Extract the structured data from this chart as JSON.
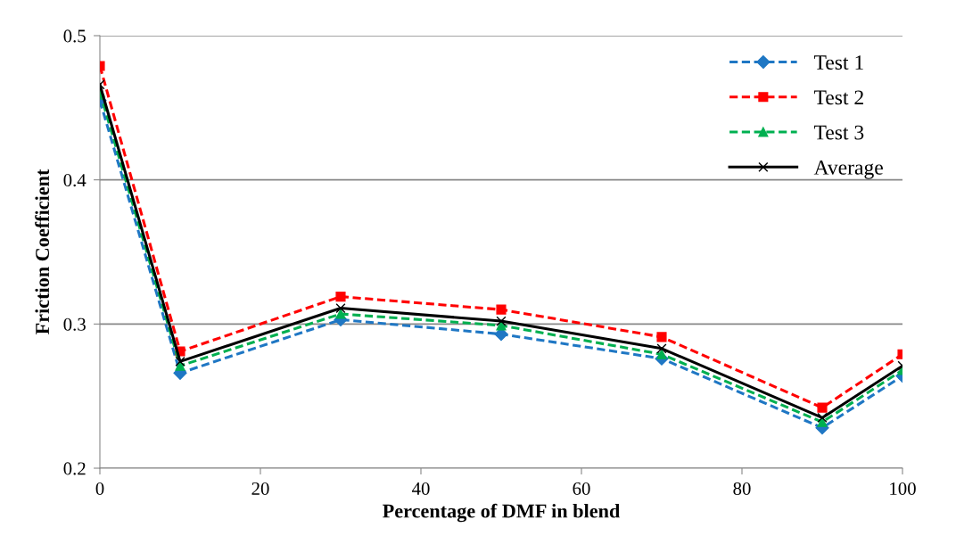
{
  "chart_data": {
    "type": "line",
    "xlabel": "Percentage of DMF in blend",
    "ylabel": "Friction Coefficient",
    "x": [
      0,
      10,
      30,
      50,
      70,
      90,
      100
    ],
    "series": [
      {
        "name": "Test 1",
        "color": "#1f77c4",
        "marker": "diamond",
        "line_style": "dashed",
        "values": [
          0.455,
          0.266,
          0.303,
          0.293,
          0.276,
          0.228,
          0.264
        ]
      },
      {
        "name": "Test 2",
        "color": "#ff0000",
        "marker": "square",
        "line_style": "dashed",
        "values": [
          0.479,
          0.281,
          0.319,
          0.31,
          0.291,
          0.242,
          0.279
        ]
      },
      {
        "name": "Test 3",
        "color": "#00b050",
        "marker": "triangle",
        "line_style": "dashed",
        "values": [
          0.461,
          0.271,
          0.307,
          0.299,
          0.279,
          0.232,
          0.268
        ]
      },
      {
        "name": "Average",
        "color": "#000000",
        "marker": "cross",
        "line_style": "solid",
        "values": [
          0.466,
          0.274,
          0.311,
          0.302,
          0.283,
          0.235,
          0.271
        ]
      }
    ],
    "xlim": [
      0,
      100
    ],
    "xticks": [
      0,
      20,
      40,
      60,
      80,
      100
    ],
    "ylim": [
      0.2,
      0.5
    ],
    "yticks": [
      0.2,
      0.3,
      0.4,
      0.5
    ],
    "grid": "y",
    "legend": "top right"
  }
}
